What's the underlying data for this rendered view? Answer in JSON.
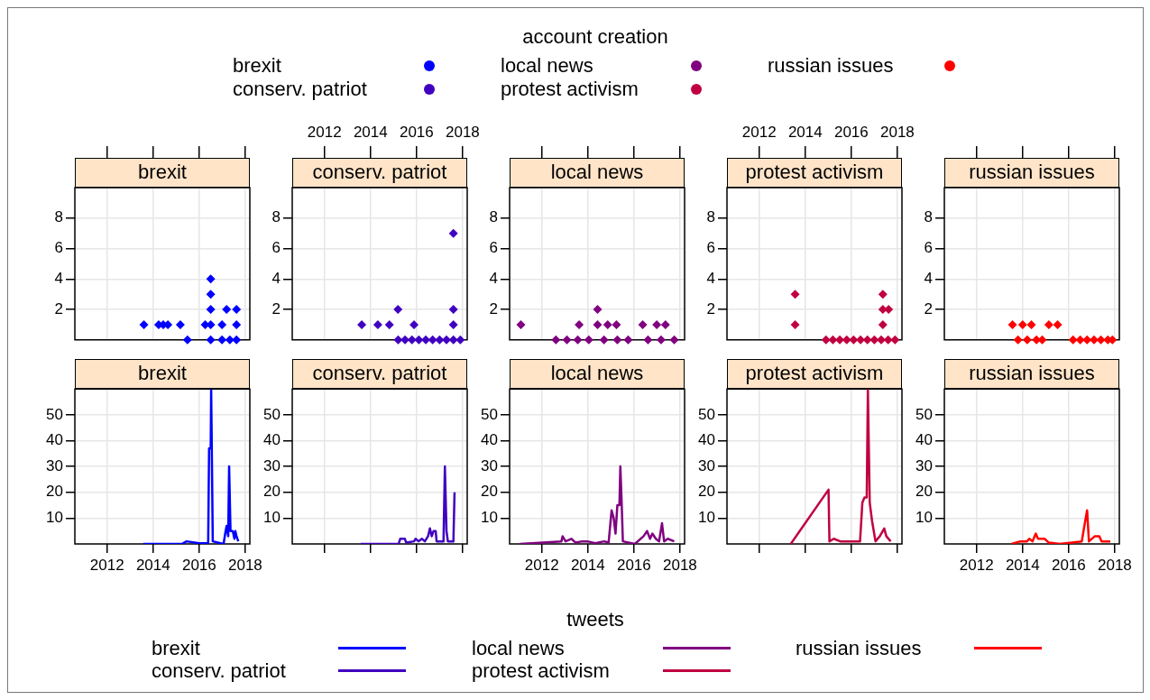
{
  "chart_data": [
    {
      "type": "scatter",
      "title": "brexit",
      "legend": "top",
      "legend_title": "account creation",
      "marker": "diamond",
      "grid": true,
      "tick_labels": "y",
      "xlim": [
        2010.6,
        2018.2
      ],
      "xticks": [
        2012,
        2014,
        2016,
        2018
      ],
      "ylim": [
        0,
        10
      ],
      "yticks": [
        2,
        4,
        6,
        8
      ],
      "series": [
        {
          "name": "brexit",
          "color": "#0000ff",
          "x": [
            2013.6,
            2014.24,
            2014.44,
            2014.64,
            2015.18,
            2015.49,
            2016.26,
            2016.5,
            2016.5,
            2016.5,
            2016.5,
            2016.5,
            2016.99,
            2016.99,
            2017.19,
            2017.33,
            2017.62,
            2017.62,
            2017.62
          ],
          "values": [
            1,
            1,
            1,
            1,
            1,
            0,
            1,
            4,
            3,
            2,
            1,
            0,
            1,
            0,
            2,
            0,
            2,
            1,
            0
          ]
        }
      ]
    },
    {
      "type": "scatter",
      "title": "conserv. patriot",
      "marker": "diamond",
      "grid": true,
      "xlim": [
        2010.6,
        2018.2
      ],
      "xticks": [
        2012,
        2014,
        2016,
        2018
      ],
      "ylim": [
        0,
        10
      ],
      "yticks": [
        2,
        4,
        6,
        8
      ],
      "series": [
        {
          "name": "conserv. patriot",
          "color": "#4000c0",
          "x": [
            2013.62,
            2014.32,
            2014.82,
            2015.19,
            2015.89,
            2015.2,
            2015.5,
            2015.8,
            2016.1,
            2016.4,
            2016.7,
            2017.0,
            2017.3,
            2017.6,
            2017.9,
            2017.6,
            2017.6,
            2017.6
          ],
          "values": [
            1,
            1,
            1,
            2,
            1,
            0,
            0,
            0,
            0,
            0,
            0,
            0,
            0,
            0,
            0,
            7,
            2,
            1
          ]
        }
      ]
    },
    {
      "type": "scatter",
      "title": "local news",
      "marker": "diamond",
      "grid": true,
      "tick_labels": "y",
      "xlim": [
        2010.6,
        2018.2
      ],
      "xticks": [
        2012,
        2014,
        2016,
        2018
      ],
      "ylim": [
        0,
        10
      ],
      "yticks": [
        2,
        4,
        6,
        8
      ],
      "series": [
        {
          "name": "local news",
          "color": "#800080",
          "x": [
            2011.09,
            2013.62,
            2014.42,
            2014.42,
            2014.86,
            2015.24,
            2016.38,
            2016.99,
            2017.37,
            2012.61,
            2013.09,
            2013.56,
            2014.04,
            2014.7,
            2015.28,
            2015.75,
            2016.61,
            2017.18,
            2017.75
          ],
          "values": [
            1,
            1,
            2,
            1,
            1,
            1,
            1,
            1,
            1,
            0,
            0,
            0,
            0,
            0,
            0,
            0,
            0,
            0,
            0
          ]
        }
      ]
    },
    {
      "type": "scatter",
      "title": "protest activism",
      "marker": "diamond",
      "grid": true,
      "xlim": [
        2010.6,
        2018.2
      ],
      "xticks": [
        2012,
        2014,
        2016,
        2018
      ],
      "ylim": [
        0,
        10
      ],
      "yticks": [
        2,
        4,
        6,
        8
      ],
      "series": [
        {
          "name": "protest activism",
          "color": "#c00040",
          "x": [
            2013.56,
            2013.56,
            2014.9,
            2015.2,
            2015.5,
            2015.8,
            2016.1,
            2016.4,
            2016.7,
            2017.0,
            2017.3,
            2017.6,
            2017.9,
            2017.37,
            2017.37,
            2017.37,
            2017.62
          ],
          "values": [
            3,
            1,
            0,
            0,
            0,
            0,
            0,
            0,
            0,
            0,
            0,
            0,
            0,
            3,
            2,
            1,
            2
          ]
        }
      ]
    },
    {
      "type": "scatter",
      "title": "russian issues",
      "marker": "diamond",
      "grid": true,
      "tick_labels": "y",
      "xlim": [
        2010.6,
        2018.2
      ],
      "xticks": [
        2012,
        2014,
        2016,
        2018
      ],
      "ylim": [
        0,
        10
      ],
      "yticks": [
        2,
        4,
        6,
        8
      ],
      "series": [
        {
          "name": "russian issues",
          "color": "#ff0000",
          "x": [
            2013.56,
            2014.0,
            2014.38,
            2015.14,
            2015.52,
            2013.8,
            2014.2,
            2014.6,
            2014.85,
            2016.19,
            2016.5,
            2016.8,
            2017.1,
            2017.4,
            2017.7,
            2017.9
          ],
          "values": [
            1,
            1,
            1,
            1,
            1,
            0,
            0,
            0,
            0,
            0,
            0,
            0,
            0,
            0,
            0,
            0
          ]
        }
      ]
    },
    {
      "type": "line",
      "title": "brexit",
      "legend": "bottom",
      "legend_title": "tweets",
      "grid": true,
      "xlim": [
        2010.6,
        2018.2
      ],
      "xticks": [
        2012,
        2014,
        2016,
        2018
      ],
      "ylim": [
        0,
        60
      ],
      "yticks": [
        10,
        20,
        30,
        40,
        50
      ],
      "series": [
        {
          "name": "brexit",
          "color": "#0000ff",
          "x": [
            2013.57,
            2015.25,
            2015.45,
            2016.0,
            2016.39,
            2016.43,
            2016.5,
            2016.52,
            2016.59,
            2017.06,
            2017.13,
            2017.19,
            2017.26,
            2017.3,
            2017.36,
            2017.46,
            2017.53,
            2017.57,
            2017.62,
            2017.7
          ],
          "values": [
            0,
            0,
            1,
            0.3,
            0.3,
            37,
            37,
            60,
            1,
            0,
            4,
            7,
            3,
            30,
            5,
            5,
            2,
            5,
            3,
            1
          ]
        }
      ]
    },
    {
      "type": "line",
      "title": "conserv. patriot",
      "grid": true,
      "tick_labels": "y",
      "xlim": [
        2010.6,
        2018.2
      ],
      "xticks": [
        2012,
        2014,
        2016,
        2018
      ],
      "ylim": [
        0,
        60
      ],
      "yticks": [
        10,
        20,
        30,
        40,
        50
      ],
      "series": [
        {
          "name": "conserv. patriot",
          "color": "#4000c0",
          "x": [
            2013.57,
            2015.22,
            2015.29,
            2015.49,
            2015.55,
            2015.89,
            2015.96,
            2016.09,
            2016.23,
            2016.36,
            2016.5,
            2016.58,
            2016.66,
            2016.74,
            2016.83,
            2016.87,
            2017.17,
            2017.23,
            2017.3,
            2017.36,
            2017.6,
            2017.65
          ],
          "values": [
            0,
            0,
            2,
            2,
            0.5,
            1,
            2,
            1,
            2,
            1,
            3,
            6,
            3,
            5,
            5,
            1,
            1,
            30,
            5,
            1,
            1,
            20
          ]
        }
      ]
    },
    {
      "type": "line",
      "title": "local news",
      "grid": true,
      "xlim": [
        2010.6,
        2018.2
      ],
      "xticks": [
        2012,
        2014,
        2016,
        2018
      ],
      "ylim": [
        0,
        60
      ],
      "yticks": [
        10,
        20,
        30,
        40,
        50
      ],
      "series": [
        {
          "name": "local news",
          "color": "#800080",
          "x": [
            2011.05,
            2012.85,
            2012.9,
            2013.03,
            2013.28,
            2013.47,
            2013.75,
            2013.98,
            2014.32,
            2014.7,
            2014.9,
            2015.03,
            2015.12,
            2015.2,
            2015.28,
            2015.37,
            2015.41,
            2015.47,
            2015.52,
            2016.04,
            2016.42,
            2016.57,
            2016.7,
            2016.8,
            2016.95,
            2017.09,
            2017.22,
            2017.31,
            2017.47,
            2017.75
          ],
          "values": [
            0,
            1,
            3,
            1,
            2,
            0.5,
            1,
            1,
            0.3,
            1,
            0.5,
            13,
            10,
            4,
            15,
            15,
            30,
            15,
            1,
            0,
            3,
            5,
            2,
            4,
            2,
            1,
            8,
            1,
            2,
            1
          ]
        }
      ]
    },
    {
      "type": "line",
      "title": "protest activism",
      "grid": true,
      "tick_labels": "y",
      "xlim": [
        2010.6,
        2018.2
      ],
      "xticks": [
        2012,
        2014,
        2016,
        2018
      ],
      "ylim": [
        0,
        60
      ],
      "yticks": [
        10,
        20,
        30,
        40,
        50
      ],
      "series": [
        {
          "name": "protest activism",
          "color": "#c00040",
          "x": [
            2013.37,
            2015.01,
            2015.05,
            2015.24,
            2015.52,
            2016.38,
            2016.48,
            2016.57,
            2016.67,
            2016.72,
            2016.8,
            2016.9,
            2017.05,
            2017.24,
            2017.43,
            2017.52,
            2017.71
          ],
          "values": [
            0,
            21,
            1,
            2,
            1,
            1,
            16,
            18,
            18,
            60,
            16,
            9,
            1,
            3,
            6,
            3,
            1
          ]
        }
      ]
    },
    {
      "type": "line",
      "title": "russian issues",
      "grid": true,
      "xlim": [
        2010.6,
        2018.2
      ],
      "xticks": [
        2012,
        2014,
        2016,
        2018
      ],
      "ylim": [
        0,
        60
      ],
      "yticks": [
        10,
        20,
        30,
        40,
        50
      ],
      "series": [
        {
          "name": "russian issues",
          "color": "#ff0000",
          "x": [
            2013.52,
            2013.9,
            2014.19,
            2014.29,
            2014.43,
            2014.57,
            2014.67,
            2014.95,
            2015.14,
            2015.62,
            2016.57,
            2016.7,
            2016.8,
            2016.88,
            2017.14,
            2017.33,
            2017.43,
            2017.81
          ],
          "values": [
            0,
            1,
            1,
            2,
            1,
            4,
            2,
            2,
            0.5,
            0,
            1,
            8,
            13,
            1,
            3,
            3,
            1,
            1
          ]
        }
      ]
    }
  ]
}
